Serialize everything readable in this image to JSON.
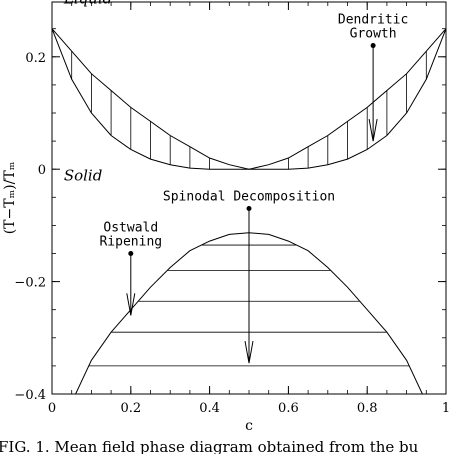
{
  "chart_data": {
    "type": "line",
    "title": "",
    "xlabel": "c",
    "ylabel": "(T−Tₘ)/Tₘ",
    "xlim": [
      0,
      1
    ],
    "ylim": [
      -0.4,
      0.25
    ],
    "x_ticks": [
      "0",
      "0.2",
      "0.4",
      "0.6",
      "0.8",
      "1"
    ],
    "y_ticks": [
      "−0.4",
      "−0.2",
      "0",
      "0.2"
    ],
    "series": [
      {
        "x": [
          0,
          0.05,
          0.1,
          0.15,
          0.2,
          0.25,
          0.3,
          0.35,
          0.4,
          0.45,
          0.5,
          0.55,
          0.6,
          0.65,
          0.7,
          0.75,
          0.8,
          0.85,
          0.9,
          0.95,
          1
        ],
        "y": [
          0.25,
          0.21,
          0.17,
          0.14,
          0.11,
          0.085,
          0.06,
          0.04,
          0.02,
          0.008,
          0,
          0.008,
          0.02,
          0.04,
          0.06,
          0.085,
          0.11,
          0.14,
          0.17,
          0.21,
          0.25
        ]
      },
      {
        "x": [
          0,
          0.05,
          0.1,
          0.15,
          0.2,
          0.25,
          0.3,
          0.35,
          0.4,
          0.45,
          0.5,
          0.55,
          0.6,
          0.65,
          0.7,
          0.75,
          0.8,
          0.85,
          0.9,
          0.95,
          1
        ],
        "y": [
          0.25,
          0.16,
          0.1,
          0.06,
          0.035,
          0.018,
          0.008,
          0.002,
          0,
          0,
          0,
          0,
          0,
          0.002,
          0.008,
          0.018,
          0.035,
          0.06,
          0.1,
          0.16,
          0.25
        ]
      },
      {
        "x": [
          0.06,
          0.1,
          0.15,
          0.2,
          0.25,
          0.3,
          0.35,
          0.4,
          0.45,
          0.5,
          0.55,
          0.6,
          0.65,
          0.7,
          0.75,
          0.8,
          0.85,
          0.9,
          0.94
        ],
        "y": [
          -0.4,
          -0.34,
          -0.29,
          -0.25,
          -0.21,
          -0.175,
          -0.145,
          -0.128,
          -0.116,
          -0.113,
          -0.116,
          -0.128,
          -0.145,
          -0.175,
          -0.21,
          -0.25,
          -0.29,
          -0.34,
          -0.4
        ]
      }
    ],
    "vertical_hatch_x": [
      0.05,
      0.1,
      0.15,
      0.2,
      0.25,
      0.3,
      0.35,
      0.4,
      0.6,
      0.65,
      0.7,
      0.75,
      0.8,
      0.85,
      0.9,
      0.95
    ],
    "horizontal_hatch_y": [
      -0.35,
      -0.29,
      -0.235,
      -0.18,
      -0.135
    ],
    "region_labels": [
      {
        "text": "Liquid",
        "x": 0.03,
        "y": 0.295
      },
      {
        "text": "Solid",
        "x": 0.03,
        "y": -0.02
      }
    ],
    "annotations": [
      {
        "lines": [
          "Dendritic",
          "Growth"
        ],
        "x": 0.815,
        "y_top": 0.22,
        "y_bottom": 0.05
      },
      {
        "lines": [
          "Spinodal Decomposition"
        ],
        "x": 0.5,
        "y_top": -0.07,
        "y_bottom": -0.345
      },
      {
        "lines": [
          "Ostwald",
          "Ripening"
        ],
        "x": 0.2,
        "y_top": -0.15,
        "y_bottom": -0.26
      }
    ]
  },
  "caption": "FIG. 1. Mean field phase diagram obtained from the bu"
}
